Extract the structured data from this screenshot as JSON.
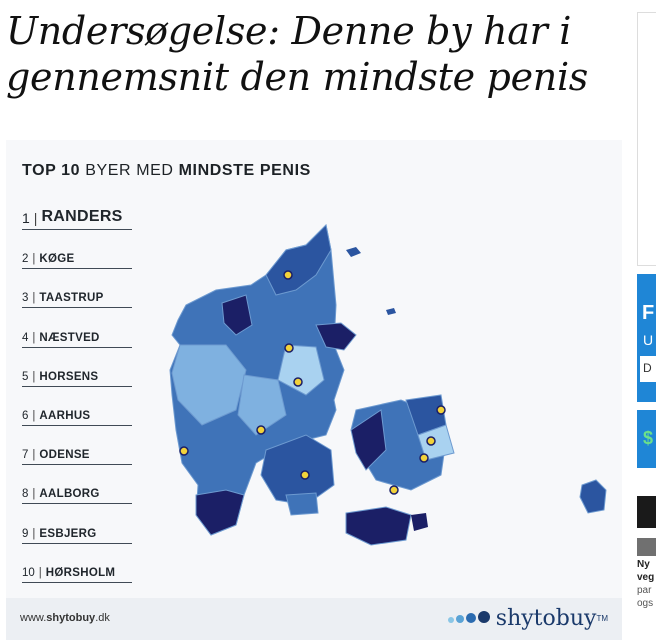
{
  "article": {
    "headline": "Undersøgelse: Denne by har i gennemsnit den mindste penis"
  },
  "infographic": {
    "title_prefix": "TOP 10",
    "title_middle": " BYER MED ",
    "title_suffix": "MINDSTE PENIS",
    "rankings": [
      {
        "rank": "1",
        "city": "RANDERS"
      },
      {
        "rank": "2",
        "city": "KØGE"
      },
      {
        "rank": "3",
        "city": "TAASTRUP"
      },
      {
        "rank": "4",
        "city": "NÆSTVED"
      },
      {
        "rank": "5",
        "city": "HORSENS"
      },
      {
        "rank": "6",
        "city": "AARHUS"
      },
      {
        "rank": "7",
        "city": "ODENSE"
      },
      {
        "rank": "8",
        "city": "AALBORG"
      },
      {
        "rank": "9",
        "city": "ESBJERG"
      },
      {
        "rank": "10",
        "city": "HØRSHOLM"
      }
    ],
    "separator": "|",
    "footer_url_prefix": "www.",
    "footer_url_bold": "shytobuy",
    "footer_url_suffix": ".dk",
    "brand": "shytobuy",
    "brand_tm": "TM",
    "colors": {
      "darkest": "#1b1f66",
      "dark": "#2b55a0",
      "medium": "#3f73b8",
      "light": "#7fb1e0",
      "lightest": "#a9d2f0",
      "marker": "#f2d23a"
    }
  },
  "sidebar": {
    "blue_box_letter": "F",
    "blue_box_sub": "U",
    "blue_box_field": "D",
    "green_letter": "$",
    "text_line1": "Ny",
    "text_line2": "veg",
    "text_line3": "par",
    "text_line4": "ogs"
  }
}
